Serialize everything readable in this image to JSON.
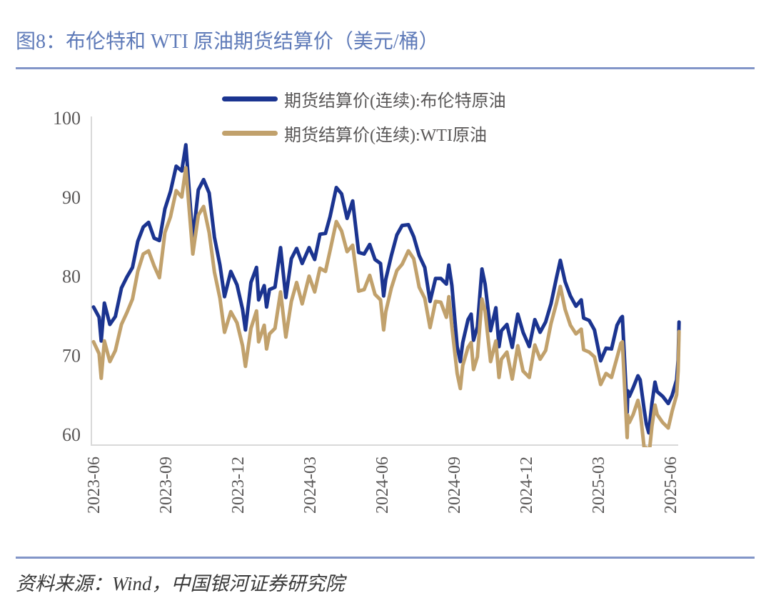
{
  "figure": {
    "title": "图8：布伦特和 WTI 原油期货结算价（美元/桶）",
    "source": "资料来源：Wind，中国银河证券研究院"
  },
  "colors": {
    "title": "#5e7ab8",
    "rule": "#8295c8",
    "tick_text": "#595757",
    "legend_text": "#595757",
    "axis_line": "#d9d9d9",
    "source_text": "#3a3a3a",
    "brent": "#1b3490",
    "wti": "#c1a16c"
  },
  "chart_data": {
    "type": "line",
    "title": "图8：布伦特和 WTI 原油期货结算价（美元/桶）",
    "xlabel": "",
    "ylabel": "",
    "ylim": [
      60,
      100
    ],
    "yticks": [
      60,
      70,
      80,
      90,
      100
    ],
    "grid": false,
    "legend_position": "top",
    "x_unit": "months_since_2023-06",
    "xticks": [
      {
        "t": 0,
        "label": "2023-06"
      },
      {
        "t": 3,
        "label": "2023-09"
      },
      {
        "t": 6,
        "label": "2023-12"
      },
      {
        "t": 9,
        "label": "2024-03"
      },
      {
        "t": 12,
        "label": "2024-06"
      },
      {
        "t": 15,
        "label": "2024-09"
      },
      {
        "t": 18,
        "label": "2024-12"
      },
      {
        "t": 21,
        "label": "2025-03"
      },
      {
        "t": 24,
        "label": "2025-06"
      }
    ],
    "x_months": [
      0.03,
      0.26,
      0.35,
      0.48,
      0.71,
      0.94,
      1.19,
      1.42,
      1.65,
      1.87,
      2.1,
      2.32,
      2.55,
      2.77,
      3.0,
      3.23,
      3.47,
      3.7,
      3.87,
      4.16,
      4.39,
      4.61,
      4.84,
      5.06,
      5.29,
      5.48,
      5.74,
      6.0,
      6.23,
      6.35,
      6.58,
      6.81,
      6.9,
      7.13,
      7.23,
      7.35,
      7.58,
      7.81,
      8.03,
      8.26,
      8.48,
      8.71,
      9.0,
      9.23,
      9.45,
      9.68,
      9.87,
      10.13,
      10.35,
      10.58,
      10.81,
      11.06,
      11.29,
      11.52,
      11.74,
      11.97,
      12.1,
      12.19,
      12.42,
      12.65,
      12.87,
      13.13,
      13.35,
      13.58,
      13.81,
      14.03,
      14.26,
      14.48,
      14.71,
      14.81,
      14.94,
      15.16,
      15.29,
      15.39,
      15.61,
      15.74,
      15.84,
      16.0,
      16.19,
      16.32,
      16.55,
      16.77,
      16.9,
      17.0,
      17.23,
      17.45,
      17.68,
      17.9,
      18.16,
      18.39,
      18.61,
      18.84,
      19.06,
      19.29,
      19.45,
      19.65,
      19.87,
      20.1,
      20.32,
      20.42,
      20.65,
      20.87,
      21.13,
      21.35,
      21.58,
      21.81,
      21.97,
      22.03,
      22.23,
      22.26,
      22.32,
      22.48,
      22.68,
      22.77,
      22.94,
      23.03,
      23.13,
      23.26,
      23.39,
      23.48,
      23.71,
      23.94,
      24.1,
      24.29,
      24.35,
      24.39
    ],
    "series": [
      {
        "name": "期货结算价(连续):布伦特原油",
        "color": "#1b3490",
        "values": [
          76.1,
          74.8,
          71.8,
          76.6,
          73.9,
          74.9,
          78.5,
          79.9,
          81.1,
          84.4,
          86.2,
          86.8,
          84.8,
          84.5,
          88.5,
          90.7,
          93.9,
          93.3,
          96.6,
          84.6,
          90.9,
          92.2,
          90.5,
          84.9,
          81.4,
          77.4,
          80.6,
          78.9,
          75.8,
          73.2,
          79.2,
          81.1,
          77.0,
          78.8,
          76.1,
          78.3,
          78.6,
          83.6,
          77.3,
          82.2,
          83.5,
          81.6,
          83.6,
          82.1,
          85.3,
          85.4,
          87.5,
          91.2,
          90.4,
          87.3,
          89.5,
          83.0,
          82.8,
          84.0,
          82.1,
          81.6,
          77.5,
          79.6,
          82.6,
          85.2,
          86.4,
          86.5,
          85.0,
          82.6,
          81.1,
          76.8,
          79.7,
          79.7,
          79.0,
          81.4,
          78.8,
          71.1,
          69.2,
          71.6,
          74.5,
          75.2,
          71.9,
          73.6,
          80.9,
          79.0,
          73.1,
          76.0,
          71.1,
          73.1,
          73.9,
          71.0,
          75.2,
          72.9,
          71.1,
          74.5,
          72.9,
          74.2,
          76.5,
          79.8,
          82.0,
          79.3,
          77.5,
          76.2,
          77.0,
          74.7,
          74.4,
          73.2,
          69.3,
          70.9,
          70.8,
          73.8,
          74.7,
          74.9,
          62.8,
          65.5,
          64.8,
          65.9,
          67.4,
          66.9,
          63.1,
          61.3,
          60.2,
          63.9,
          66.6,
          65.4,
          64.8,
          63.9,
          64.9,
          66.9,
          69.4,
          74.2
        ]
      },
      {
        "name": "期货结算价(连续):WTI原油",
        "color": "#c1a16c",
        "values": [
          71.7,
          70.2,
          67.1,
          71.8,
          69.2,
          70.6,
          73.9,
          75.4,
          77.1,
          80.6,
          82.8,
          83.2,
          81.3,
          79.8,
          85.5,
          87.5,
          90.8,
          90.0,
          93.7,
          82.8,
          87.7,
          88.8,
          85.5,
          80.5,
          77.2,
          72.9,
          75.5,
          74.1,
          71.2,
          68.6,
          73.4,
          75.6,
          71.7,
          73.8,
          70.8,
          72.7,
          73.4,
          78.0,
          72.3,
          76.8,
          79.2,
          76.5,
          80.0,
          78.0,
          81.0,
          80.6,
          83.2,
          86.9,
          85.7,
          83.1,
          83.9,
          78.1,
          78.3,
          80.1,
          77.7,
          77.0,
          73.2,
          75.5,
          78.5,
          80.7,
          81.5,
          83.2,
          82.2,
          78.6,
          77.2,
          73.5,
          76.8,
          76.7,
          74.8,
          77.4,
          73.6,
          67.7,
          65.8,
          68.7,
          71.0,
          71.6,
          68.2,
          69.8,
          77.1,
          75.6,
          69.2,
          71.8,
          67.2,
          69.5,
          70.4,
          67.0,
          71.2,
          68.0,
          67.2,
          71.3,
          69.5,
          70.6,
          74.0,
          76.6,
          78.7,
          75.8,
          73.8,
          72.7,
          73.3,
          70.7,
          70.4,
          69.8,
          66.3,
          67.7,
          67.2,
          69.7,
          71.5,
          71.7,
          59.6,
          62.4,
          61.5,
          62.5,
          64.3,
          63.0,
          58.2,
          58.3,
          57.1,
          61.0,
          63.7,
          62.5,
          61.5,
          60.8,
          62.9,
          65.0,
          68.0,
          73.0
        ]
      }
    ]
  }
}
